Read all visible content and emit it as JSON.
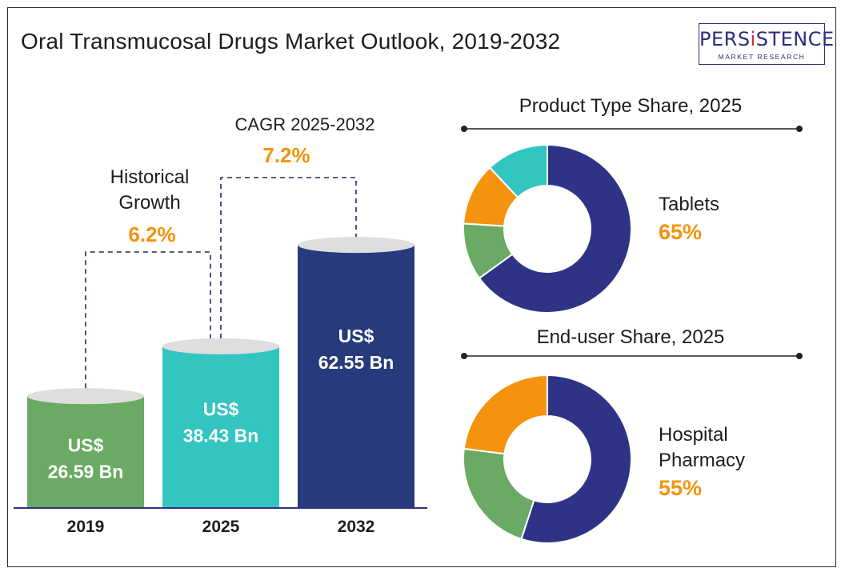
{
  "title": "Oral Transmucosal Drugs Market Outlook, 2019-2032",
  "logo": {
    "brand_pre": "PERS",
    "brand_accent": "i",
    "brand_post": "STENCE",
    "subtitle": "MARKET RESEARCH"
  },
  "colors": {
    "green": "#6aaa64",
    "teal": "#33c5c0",
    "navy": "#273b7c",
    "indigo": "#2f3386",
    "orange": "#f5930f",
    "cap": "#dedede",
    "axis": "#2f3386",
    "line": "#1f2a5c"
  },
  "chart_data": [
    {
      "type": "bar",
      "title": "Oral Transmucosal Drugs Market Outlook, 2019-2032",
      "categories": [
        "2019",
        "2025",
        "2032"
      ],
      "values": [
        26.59,
        38.43,
        62.55
      ],
      "unit": "US$ Bn",
      "value_labels": [
        {
          "line1": "US$",
          "line2": "26.59 Bn"
        },
        {
          "line1": "US$",
          "line2": "38.43 Bn"
        },
        {
          "line1": "US$",
          "line2": "62.55 Bn"
        }
      ],
      "bar_colors": [
        "#6aaa64",
        "#33c5c0",
        "#273b7c"
      ],
      "annotations": [
        {
          "label_line1": "Historical",
          "label_line2": "Growth",
          "value": "6.2%",
          "from": "2019",
          "to": "2025"
        },
        {
          "label_line1": "CAGR 2025-2032",
          "label_line2": "",
          "value": "7.2%",
          "from": "2025",
          "to": "2032"
        }
      ]
    },
    {
      "type": "pie",
      "title": "Product Type Share, 2025",
      "highlight_label": "Tablets",
      "highlight_value": "65%",
      "slices": [
        {
          "value": 65,
          "color": "#2f3386"
        },
        {
          "value": 11,
          "color": "#6aaa64"
        },
        {
          "value": 12,
          "color": "#f5930f"
        },
        {
          "value": 12,
          "color": "#33c5c0"
        }
      ]
    },
    {
      "type": "pie",
      "title": "End-user Share, 2025",
      "highlight_label_line1": "Hospital",
      "highlight_label_line2": "Pharmacy",
      "highlight_value": "55%",
      "slices": [
        {
          "value": 55,
          "color": "#2f3386"
        },
        {
          "value": 22,
          "color": "#6aaa64"
        },
        {
          "value": 23,
          "color": "#f5930f"
        }
      ]
    }
  ]
}
